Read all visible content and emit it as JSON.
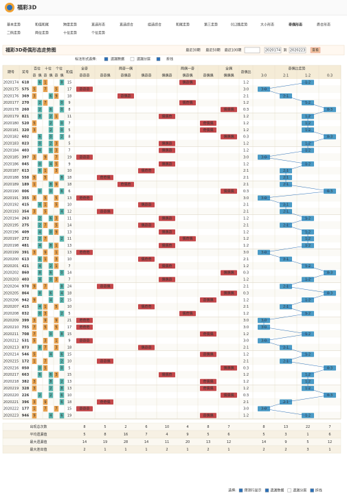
{
  "logo": "福彩3D",
  "nav": [
    "基本走势",
    "和值和尾",
    "跨度走势",
    "直选形态",
    "直选综合",
    "组选综合",
    "和尾走势",
    "第三走势",
    "012路走势",
    "大小形态",
    "奇偶形态",
    "质合形态",
    "二码走势",
    "两位走势",
    "十位走势",
    "个位走势"
  ],
  "active_nav": "奇偶形态",
  "title": "福彩3D奇偶形态走势图",
  "periods": [
    "最近30期",
    "最近50期",
    "最近100期"
  ],
  "range": {
    "from": "2020174",
    "sep": "到",
    "to": "2020223",
    "button": "查看"
  },
  "mark_label": "标注形式选择:",
  "options": [
    "遗漏数据",
    "遗漏分层",
    "折线"
  ],
  "table": {
    "headers": {
      "period": "期号",
      "number": "奖号",
      "digit_groups": [
        "百位",
        "十位",
        "个位"
      ],
      "parity": [
        "奇",
        "偶"
      ],
      "sum": "和值",
      "pattern_groups": [
        {
          "name": "全奇",
          "cols": [
            "奇奇奇"
          ]
        },
        {
          "name": "两奇一偶",
          "cols": [
            "奇奇偶",
            "奇偶奇",
            "偶奇奇"
          ]
        },
        {
          "name": "两偶一奇",
          "cols": [
            "偶偶奇",
            "偶奇偶",
            "奇偶偶"
          ]
        },
        {
          "name": "全偶",
          "cols": [
            "偶偶偶"
          ]
        }
      ],
      "ratio": "奇偶比",
      "trend": "奇偶比走势",
      "trend_cols": [
        "3:0",
        "2:1",
        "1:2",
        "0:3"
      ]
    },
    "rows": [
      {
        "period": "2020174",
        "number": "618",
        "digits": [
          6,
          1,
          8
        ],
        "sum": 15,
        "pattern": "偶奇偶",
        "ratio": "1:2"
      },
      {
        "period": "2020175",
        "number": "575",
        "digits": [
          5,
          7,
          5
        ],
        "sum": 17,
        "pattern": "奇奇奇",
        "ratio": "3:0"
      },
      {
        "period": "2020176",
        "number": "369",
        "digits": [
          3,
          6,
          9
        ],
        "sum": 18,
        "pattern": "奇偶奇",
        "ratio": "2:1"
      },
      {
        "period": "2020177",
        "number": "270",
        "digits": [
          2,
          7,
          0
        ],
        "sum": 9,
        "pattern": "偶奇偶",
        "ratio": "1:2"
      },
      {
        "period": "2020178",
        "number": "260",
        "digits": [
          2,
          6,
          0
        ],
        "sum": 8,
        "pattern": "偶偶偶",
        "ratio": "0:3"
      },
      {
        "period": "2020179",
        "number": "821",
        "digits": [
          8,
          2,
          1
        ],
        "sum": 11,
        "pattern": "偶偶奇",
        "ratio": "1:2"
      },
      {
        "period": "2020180",
        "number": "520",
        "digits": [
          5,
          2,
          0
        ],
        "sum": 7,
        "pattern": "奇偶偶",
        "ratio": "1:2"
      },
      {
        "period": "2020181",
        "number": "320",
        "digits": [
          3,
          2,
          0
        ],
        "sum": 5,
        "pattern": "奇偶偶",
        "ratio": "1:2"
      },
      {
        "period": "2020182",
        "number": "602",
        "digits": [
          6,
          0,
          2
        ],
        "sum": 8,
        "pattern": "偶偶偶",
        "ratio": "0:3"
      },
      {
        "period": "2020183",
        "number": "023",
        "digits": [
          0,
          2,
          3
        ],
        "sum": 5,
        "pattern": "偶偶奇",
        "ratio": "1:2"
      },
      {
        "period": "2020184",
        "number": "403",
        "digits": [
          4,
          0,
          3
        ],
        "sum": 7,
        "pattern": "偶偶奇",
        "ratio": "1:2"
      },
      {
        "period": "2020185",
        "number": "397",
        "digits": [
          3,
          9,
          7
        ],
        "sum": 19,
        "pattern": "奇奇奇",
        "ratio": "3:0"
      },
      {
        "period": "2020186",
        "number": "045",
        "digits": [
          0,
          4,
          5
        ],
        "sum": 9,
        "pattern": "偶偶奇",
        "ratio": "1:2"
      },
      {
        "period": "2020187",
        "number": "613",
        "digits": [
          6,
          1,
          3
        ],
        "sum": 10,
        "pattern": "偶奇奇",
        "ratio": "2:1"
      },
      {
        "period": "2020188",
        "number": "558",
        "digits": [
          5,
          5,
          8
        ],
        "sum": 18,
        "pattern": "奇奇偶",
        "ratio": "2:1"
      },
      {
        "period": "2020189",
        "number": "189",
        "digits": [
          1,
          8,
          9
        ],
        "sum": 18,
        "pattern": "奇偶奇",
        "ratio": "2:1"
      },
      {
        "period": "2020190",
        "number": "006",
        "digits": [
          0,
          0,
          6
        ],
        "sum": 6,
        "pattern": "偶偶偶",
        "ratio": "0:3"
      },
      {
        "period": "2020191",
        "number": "355",
        "digits": [
          3,
          5,
          5
        ],
        "sum": 13,
        "pattern": "奇奇奇",
        "ratio": "3:0"
      },
      {
        "period": "2020192",
        "number": "415",
        "digits": [
          4,
          1,
          5
        ],
        "sum": 10,
        "pattern": "偶奇奇",
        "ratio": "2:1"
      },
      {
        "period": "2020193",
        "number": "354",
        "digits": [
          3,
          5,
          4
        ],
        "sum": 12,
        "pattern": "奇奇偶",
        "ratio": "2:1"
      },
      {
        "period": "2020194",
        "number": "263",
        "digits": [
          2,
          6,
          3
        ],
        "sum": 11,
        "pattern": "偶偶奇",
        "ratio": "1:2"
      },
      {
        "period": "2020195",
        "number": "275",
        "digits": [
          2,
          7,
          5
        ],
        "sum": 14,
        "pattern": "偶奇奇",
        "ratio": "2:1"
      },
      {
        "period": "2020196",
        "number": "409",
        "digits": [
          4,
          0,
          9
        ],
        "sum": 13,
        "pattern": "偶偶奇",
        "ratio": "1:2"
      },
      {
        "period": "2020197",
        "number": "272",
        "digits": [
          2,
          7,
          2
        ],
        "sum": 11,
        "pattern": "偶奇偶",
        "ratio": "1:2"
      },
      {
        "period": "2020198",
        "number": "481",
        "digits": [
          4,
          8,
          1
        ],
        "sum": 13,
        "pattern": "偶偶奇",
        "ratio": "1:2"
      },
      {
        "period": "2020199",
        "number": "391",
        "digits": [
          3,
          9,
          1
        ],
        "sum": 13,
        "pattern": "奇奇奇",
        "ratio": "3:0"
      },
      {
        "period": "2020200",
        "number": "613",
        "digits": [
          6,
          1,
          3
        ],
        "sum": 10,
        "pattern": "偶奇奇",
        "ratio": "2:1"
      },
      {
        "period": "2020201",
        "number": "421",
        "digits": [
          4,
          2,
          1
        ],
        "sum": 7,
        "pattern": "偶偶奇",
        "ratio": "1:2"
      },
      {
        "period": "2020202",
        "number": "860",
        "digits": [
          8,
          6,
          0
        ],
        "sum": 14,
        "pattern": "偶偶偶",
        "ratio": "0:3"
      },
      {
        "period": "2020203",
        "number": "403",
        "digits": [
          4,
          0,
          3
        ],
        "sum": 7,
        "pattern": "偶偶奇",
        "ratio": "1:2"
      },
      {
        "period": "2020204",
        "number": "978",
        "digits": [
          9,
          7,
          8
        ],
        "sum": 24,
        "pattern": "奇奇偶",
        "ratio": "2:1"
      },
      {
        "period": "2020205",
        "number": "864",
        "digits": [
          8,
          6,
          4
        ],
        "sum": 18,
        "pattern": "偶偶偶",
        "ratio": "0:3"
      },
      {
        "period": "2020206",
        "number": "942",
        "digits": [
          9,
          4,
          2
        ],
        "sum": 15,
        "pattern": "奇偶偶",
        "ratio": "1:2"
      },
      {
        "period": "2020207",
        "number": "415",
        "digits": [
          4,
          1,
          5
        ],
        "sum": 10,
        "pattern": "偶奇奇",
        "ratio": "2:1"
      },
      {
        "period": "2020208",
        "number": "032",
        "digits": [
          0,
          3,
          2
        ],
        "sum": 5,
        "pattern": "偶奇偶",
        "ratio": "1:2"
      },
      {
        "period": "2020209",
        "number": "399",
        "digits": [
          3,
          9,
          9
        ],
        "sum": 21,
        "pattern": "奇奇奇",
        "ratio": "3:0"
      },
      {
        "period": "2020210",
        "number": "755",
        "digits": [
          7,
          5,
          5
        ],
        "sum": 17,
        "pattern": "奇奇奇",
        "ratio": "3:0"
      },
      {
        "period": "2020211",
        "number": "708",
        "digits": [
          7,
          0,
          8
        ],
        "sum": 15,
        "pattern": "奇偶偶",
        "ratio": "1:2"
      },
      {
        "period": "2020212",
        "number": "531",
        "digits": [
          5,
          3,
          1
        ],
        "sum": 9,
        "pattern": "奇奇奇",
        "ratio": "3:0"
      },
      {
        "period": "2020213",
        "number": "873",
        "digits": [
          8,
          7,
          3
        ],
        "sum": 18,
        "pattern": "偶奇奇",
        "ratio": "2:1"
      },
      {
        "period": "2020214",
        "number": "546",
        "digits": [
          5,
          4,
          6
        ],
        "sum": 15,
        "pattern": "奇偶偶",
        "ratio": "1:2"
      },
      {
        "period": "2020215",
        "number": "172",
        "digits": [
          1,
          7,
          2
        ],
        "sum": 10,
        "pattern": "奇奇偶",
        "ratio": "2:1"
      },
      {
        "period": "2020216",
        "number": "050",
        "digits": [
          0,
          5,
          0
        ],
        "sum": 5,
        "pattern": "偶偶偶",
        "ratio": "0:3"
      },
      {
        "period": "2020217",
        "number": "663",
        "digits": [
          6,
          6,
          3
        ],
        "sum": 15,
        "pattern": "偶偶奇",
        "ratio": "1:2"
      },
      {
        "period": "2020218",
        "number": "382",
        "digits": [
          3,
          8,
          2
        ],
        "sum": 13,
        "pattern": "奇偶偶",
        "ratio": "1:2"
      },
      {
        "period": "2020219",
        "number": "328",
        "digits": [
          3,
          2,
          8
        ],
        "sum": 13,
        "pattern": "奇偶偶",
        "ratio": "1:2"
      },
      {
        "period": "2020220",
        "number": "226",
        "digits": [
          2,
          2,
          6
        ],
        "sum": 10,
        "pattern": "偶偶偶",
        "ratio": "0:3"
      },
      {
        "period": "2020221",
        "number": "396",
        "digits": [
          3,
          9,
          6
        ],
        "sum": 18,
        "pattern": "奇奇偶",
        "ratio": "2:1"
      },
      {
        "period": "2020222",
        "number": "177",
        "digits": [
          1,
          7,
          7
        ],
        "sum": 15,
        "pattern": "奇奇奇",
        "ratio": "3:0"
      },
      {
        "period": "2020223",
        "number": "946",
        "digits": [
          9,
          4,
          6
        ],
        "sum": 19,
        "pattern": "奇偶偶",
        "ratio": "1:2"
      }
    ],
    "stats": [
      {
        "label": "出现总次数",
        "values": [
          8,
          5,
          2,
          6,
          10,
          4,
          8,
          7,
          8,
          13,
          22,
          7
        ]
      },
      {
        "label": "平均遗漏值",
        "values": [
          5,
          8,
          16,
          7,
          4,
          9,
          5,
          6,
          5,
          3,
          1,
          6
        ]
      },
      {
        "label": "最大遗漏值",
        "values": [
          14,
          19,
          28,
          14,
          11,
          20,
          13,
          12,
          14,
          9,
          5,
          12
        ]
      },
      {
        "label": "最大连出值",
        "values": [
          2,
          1,
          1,
          1,
          2,
          1,
          2,
          1,
          2,
          2,
          3,
          1
        ]
      }
    ]
  },
  "footer": {
    "label": "选择:",
    "options": [
      "预测行显示",
      "遗漏数据",
      "遗漏分层",
      "折线"
    ]
  }
}
